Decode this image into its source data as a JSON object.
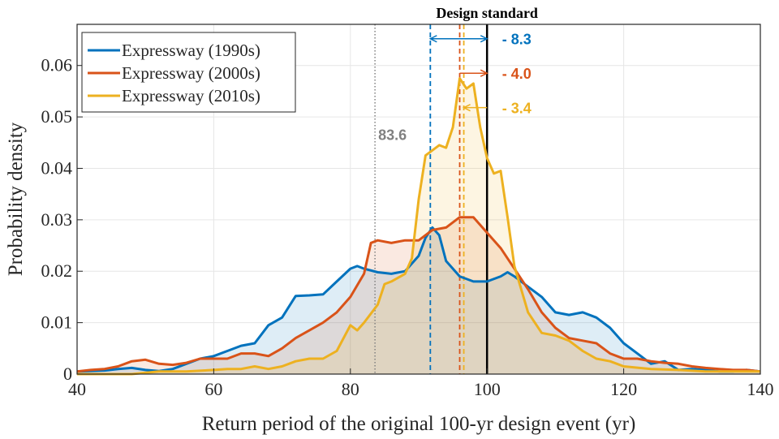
{
  "chart_data": {
    "type": "area",
    "title": "",
    "xlabel": "Return period of the original 100-yr design event (yr)",
    "ylabel": "Probability density",
    "xlim": [
      40,
      140
    ],
    "ylim": [
      0,
      0.068
    ],
    "xticks": [
      "40",
      "60",
      "80",
      "100",
      "120",
      "140"
    ],
    "yticks": [
      "0",
      "0.01",
      "0.02",
      "0.03",
      "0.04",
      "0.05",
      "0.06"
    ],
    "grid": true,
    "legend_position": "top-left",
    "series": [
      {
        "name": "Expressway (1990s)",
        "color": "#0072BD",
        "x": [
          40,
          42,
          44,
          46,
          48,
          50,
          52,
          54,
          56,
          58,
          60,
          62,
          64,
          66,
          68,
          70,
          72,
          74,
          76,
          78,
          80,
          81,
          82,
          84,
          86,
          88,
          90,
          91,
          92,
          93,
          94,
          96,
          98,
          100,
          102,
          103,
          104,
          106,
          108,
          110,
          112,
          114,
          116,
          118,
          120,
          122,
          124,
          126,
          128,
          130,
          132,
          134,
          136,
          138,
          140
        ],
        "y": [
          0.0005,
          0.0006,
          0.0007,
          0.001,
          0.0012,
          0.0008,
          0.0006,
          0.001,
          0.002,
          0.003,
          0.0035,
          0.0045,
          0.0055,
          0.006,
          0.0095,
          0.011,
          0.0152,
          0.0153,
          0.0155,
          0.018,
          0.0205,
          0.021,
          0.0205,
          0.0198,
          0.0195,
          0.02,
          0.023,
          0.0265,
          0.0285,
          0.027,
          0.022,
          0.019,
          0.018,
          0.018,
          0.019,
          0.0198,
          0.019,
          0.017,
          0.015,
          0.012,
          0.0115,
          0.012,
          0.011,
          0.009,
          0.006,
          0.004,
          0.002,
          0.0025,
          0.0008,
          0.001,
          0.0008,
          0.0005,
          0.0005,
          0.0008,
          0.0005
        ]
      },
      {
        "name": "Expressway (2000s)",
        "color": "#D95319",
        "x": [
          40,
          42,
          44,
          46,
          48,
          50,
          52,
          54,
          56,
          58,
          60,
          62,
          64,
          66,
          68,
          70,
          72,
          74,
          76,
          78,
          80,
          82,
          83,
          84,
          86,
          88,
          90,
          92,
          94,
          96,
          98,
          100,
          102,
          104,
          106,
          108,
          110,
          112,
          114,
          116,
          118,
          120,
          122,
          124,
          126,
          128,
          130,
          132,
          134,
          136,
          138,
          140
        ],
        "y": [
          0.0005,
          0.0008,
          0.001,
          0.0015,
          0.0025,
          0.0028,
          0.002,
          0.0018,
          0.0022,
          0.003,
          0.003,
          0.003,
          0.004,
          0.004,
          0.0035,
          0.005,
          0.007,
          0.0085,
          0.01,
          0.012,
          0.015,
          0.0195,
          0.0255,
          0.026,
          0.0255,
          0.026,
          0.026,
          0.028,
          0.0285,
          0.0305,
          0.0305,
          0.0275,
          0.0245,
          0.0205,
          0.0165,
          0.012,
          0.009,
          0.007,
          0.0065,
          0.006,
          0.004,
          0.003,
          0.003,
          0.0025,
          0.0022,
          0.002,
          0.0015,
          0.0012,
          0.001,
          0.0008,
          0.0008,
          0.0005
        ]
      },
      {
        "name": "Expressway (2010s)",
        "color": "#EDB120",
        "x": [
          40,
          44,
          48,
          52,
          56,
          60,
          62,
          64,
          66,
          68,
          70,
          72,
          74,
          76,
          78,
          80,
          81,
          82,
          84,
          85,
          86,
          88,
          89,
          90,
          91,
          92,
          93,
          94,
          95,
          96,
          97,
          98,
          99,
          100,
          101,
          102,
          103,
          104,
          106,
          108,
          110,
          112,
          114,
          116,
          118,
          120,
          124,
          128,
          132,
          136,
          140
        ],
        "y": [
          0,
          0,
          0,
          0.0005,
          0.0005,
          0.0008,
          0.001,
          0.001,
          0.0015,
          0.001,
          0.0015,
          0.0025,
          0.003,
          0.003,
          0.0045,
          0.0095,
          0.0085,
          0.01,
          0.0135,
          0.0175,
          0.018,
          0.0195,
          0.0225,
          0.034,
          0.0425,
          0.0435,
          0.0445,
          0.044,
          0.048,
          0.0575,
          0.0555,
          0.0565,
          0.048,
          0.042,
          0.039,
          0.0395,
          0.0305,
          0.021,
          0.012,
          0.008,
          0.0075,
          0.0065,
          0.0045,
          0.003,
          0.0025,
          0.0015,
          0.001,
          0.0008,
          0.0005,
          0.0005,
          0.0005
        ]
      }
    ],
    "vertical_lines": [
      {
        "x": 83.6,
        "color": "#808080",
        "style": "dotted",
        "label": "83.6"
      },
      {
        "x": 91.7,
        "color": "#0072BD",
        "style": "dashed"
      },
      {
        "x": 96.0,
        "color": "#D95319",
        "style": "dashed"
      },
      {
        "x": 96.6,
        "color": "#EDB120",
        "style": "dashed"
      },
      {
        "x": 100,
        "color": "#000000",
        "style": "solid",
        "label": "Design standard"
      }
    ],
    "annotations": [
      {
        "text": "- 8.3",
        "color": "#0072BD",
        "from": 91.7,
        "to": 100,
        "y": 0.0652
      },
      {
        "text": "- 4.0",
        "color": "#D95319",
        "from": 96.0,
        "to": 100,
        "y": 0.0585
      },
      {
        "text": "- 3.4",
        "color": "#EDB120",
        "from": 96.6,
        "to": 100,
        "y": 0.0518
      }
    ]
  }
}
